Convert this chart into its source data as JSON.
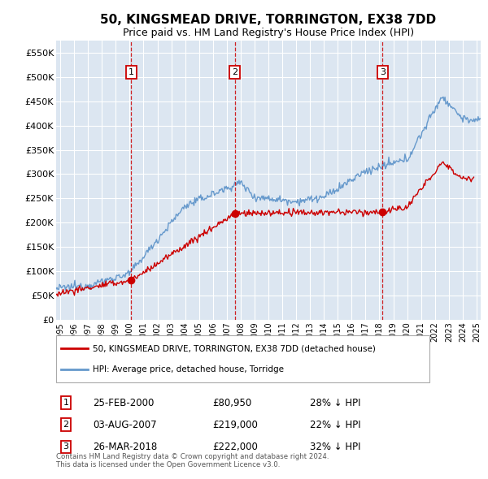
{
  "title": "50, KINGSMEAD DRIVE, TORRINGTON, EX38 7DD",
  "subtitle": "Price paid vs. HM Land Registry's House Price Index (HPI)",
  "legend_label_red": "50, KINGSMEAD DRIVE, TORRINGTON, EX38 7DD (detached house)",
  "legend_label_blue": "HPI: Average price, detached house, Torridge",
  "footer": "Contains HM Land Registry data © Crown copyright and database right 2024.\nThis data is licensed under the Open Government Licence v3.0.",
  "transactions": [
    {
      "num": 1,
      "date": "25-FEB-2000",
      "price": "£80,950",
      "hpi_text": "28% ↓ HPI",
      "year": 2000.12
    },
    {
      "num": 2,
      "date": "03-AUG-2007",
      "price": "£219,000",
      "hpi_text": "22% ↓ HPI",
      "year": 2007.58
    },
    {
      "num": 3,
      "date": "26-MAR-2018",
      "price": "£222,000",
      "hpi_text": "32% ↓ HPI",
      "year": 2018.23
    }
  ],
  "t1_price": 80950,
  "t2_price": 219000,
  "t3_price": 222000,
  "ylim": [
    0,
    575000
  ],
  "xlim_start": 1994.7,
  "xlim_end": 2025.3,
  "yticks": [
    0,
    50000,
    100000,
    150000,
    200000,
    250000,
    300000,
    350000,
    400000,
    450000,
    500000,
    550000
  ],
  "ytick_labels": [
    "£0",
    "£50K",
    "£100K",
    "£150K",
    "£200K",
    "£250K",
    "£300K",
    "£350K",
    "£400K",
    "£450K",
    "£500K",
    "£550K"
  ],
  "xticks": [
    1995,
    1996,
    1997,
    1998,
    1999,
    2000,
    2001,
    2002,
    2003,
    2004,
    2005,
    2006,
    2007,
    2008,
    2009,
    2010,
    2011,
    2012,
    2013,
    2014,
    2015,
    2016,
    2017,
    2018,
    2019,
    2020,
    2021,
    2022,
    2023,
    2024,
    2025
  ],
  "plot_bg": "#dce6f1",
  "grid_color": "#ffffff",
  "red_color": "#cc0000",
  "blue_color": "#6699cc",
  "title_fontsize": 11,
  "subtitle_fontsize": 9
}
